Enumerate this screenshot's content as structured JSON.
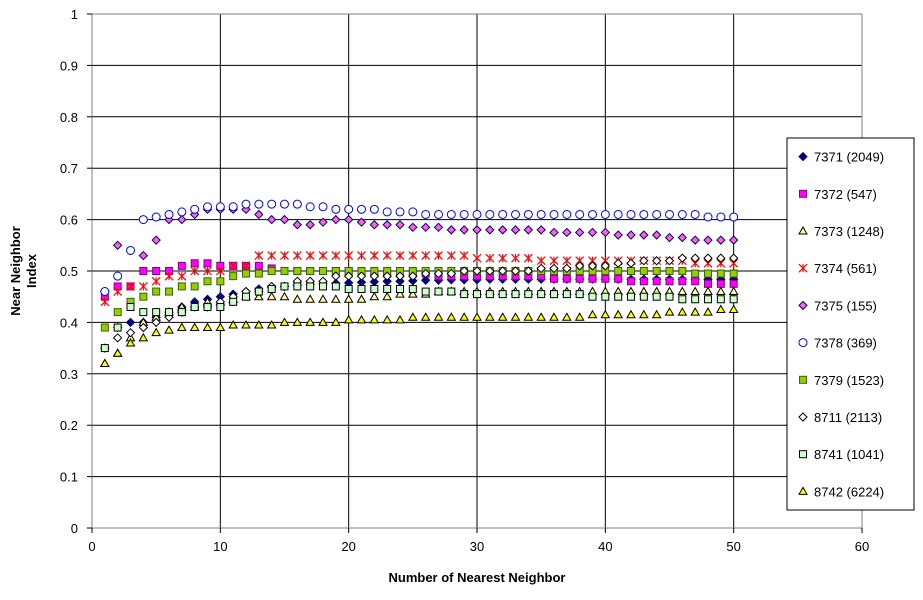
{
  "chart_data": {
    "type": "scatter",
    "title": "",
    "xlabel": "Number of Nearest Neighbor",
    "ylabel_lines": [
      "Near Neighbor",
      "Index"
    ],
    "xlim": [
      0,
      60
    ],
    "ylim": [
      0,
      1
    ],
    "x_ticks": [
      0,
      10,
      20,
      30,
      40,
      50,
      60
    ],
    "y_ticks": [
      0,
      0.1,
      0.2,
      0.3,
      0.4,
      0.5,
      0.6,
      0.7,
      0.8,
      0.9,
      1
    ],
    "x_tick_labels": [
      "0",
      "10",
      "20",
      "30",
      "40",
      "50",
      "60"
    ],
    "y_tick_labels": [
      "0",
      "0.1",
      "0.2",
      "0.3",
      "0.4",
      "0.5",
      "0.6",
      "0.7",
      "0.8",
      "0.9",
      "1"
    ],
    "grid": "major gridlines on both axes",
    "legend_position": "right",
    "x": [
      1,
      2,
      3,
      4,
      5,
      6,
      7,
      8,
      9,
      10,
      11,
      12,
      13,
      14,
      15,
      16,
      17,
      18,
      19,
      20,
      21,
      22,
      23,
      24,
      25,
      26,
      27,
      28,
      29,
      30,
      31,
      32,
      33,
      34,
      35,
      36,
      37,
      38,
      39,
      40,
      41,
      42,
      43,
      44,
      45,
      46,
      47,
      48,
      49,
      50
    ],
    "series": [
      {
        "name": "7371 (2049)",
        "marker": "diamond",
        "color": "#000080",
        "fill": "#000080",
        "values": [
          0.46,
          0.39,
          0.4,
          0.4,
          0.41,
          0.42,
          0.43,
          0.44,
          0.445,
          0.45,
          0.455,
          0.46,
          0.465,
          0.468,
          0.47,
          0.472,
          0.474,
          0.475,
          0.476,
          0.477,
          0.478,
          0.479,
          0.48,
          0.48,
          0.481,
          0.482,
          0.482,
          0.483,
          0.483,
          0.483,
          0.484,
          0.484,
          0.484,
          0.484,
          0.484,
          0.484,
          0.484,
          0.484,
          0.484,
          0.484,
          0.484,
          0.484,
          0.484,
          0.484,
          0.484,
          0.484,
          0.484,
          0.484,
          0.484,
          0.484
        ]
      },
      {
        "name": "7372 (547)",
        "marker": "square",
        "color": "#800080",
        "fill": "#ff00ff",
        "values": [
          0.45,
          0.47,
          0.47,
          0.5,
          0.5,
          0.5,
          0.51,
          0.515,
          0.515,
          0.51,
          0.51,
          0.51,
          0.51,
          0.505,
          0.5,
          0.5,
          0.5,
          0.5,
          0.5,
          0.5,
          0.5,
          0.495,
          0.495,
          0.495,
          0.495,
          0.495,
          0.49,
          0.49,
          0.49,
          0.49,
          0.49,
          0.49,
          0.49,
          0.49,
          0.49,
          0.485,
          0.485,
          0.485,
          0.485,
          0.485,
          0.485,
          0.48,
          0.48,
          0.48,
          0.48,
          0.48,
          0.48,
          0.475,
          0.475,
          0.475
        ]
      },
      {
        "name": "7373 (1248)",
        "marker": "triangle",
        "color": "#000000",
        "fill": "#ffff99",
        "values": [
          0.32,
          0.34,
          0.37,
          0.4,
          0.41,
          0.42,
          0.43,
          0.43,
          0.44,
          0.44,
          0.445,
          0.45,
          0.45,
          0.45,
          0.45,
          0.445,
          0.445,
          0.445,
          0.445,
          0.445,
          0.445,
          0.45,
          0.45,
          0.455,
          0.455,
          0.455,
          0.46,
          0.46,
          0.46,
          0.46,
          0.46,
          0.46,
          0.46,
          0.46,
          0.46,
          0.46,
          0.46,
          0.46,
          0.46,
          0.46,
          0.46,
          0.46,
          0.46,
          0.46,
          0.46,
          0.46,
          0.46,
          0.46,
          0.46,
          0.46
        ]
      },
      {
        "name": "7374 (561)",
        "marker": "star",
        "color": "#ff0000",
        "fill": "none",
        "values": [
          0.44,
          0.46,
          0.47,
          0.47,
          0.48,
          0.49,
          0.49,
          0.5,
          0.5,
          0.5,
          0.51,
          0.51,
          0.53,
          0.53,
          0.53,
          0.53,
          0.53,
          0.53,
          0.53,
          0.53,
          0.53,
          0.53,
          0.53,
          0.53,
          0.53,
          0.53,
          0.53,
          0.53,
          0.53,
          0.525,
          0.525,
          0.525,
          0.525,
          0.525,
          0.52,
          0.52,
          0.52,
          0.52,
          0.52,
          0.52,
          0.52,
          0.52,
          0.52,
          0.52,
          0.52,
          0.52,
          0.515,
          0.515,
          0.515,
          0.515
        ]
      },
      {
        "name": "7375 (155)",
        "marker": "diamond",
        "color": "#000080",
        "fill": "#ff66cc",
        "values": [
          0.46,
          0.55,
          0.54,
          0.53,
          0.56,
          0.6,
          0.6,
          0.61,
          0.62,
          0.62,
          0.62,
          0.62,
          0.61,
          0.6,
          0.6,
          0.59,
          0.59,
          0.595,
          0.6,
          0.6,
          0.595,
          0.59,
          0.59,
          0.59,
          0.585,
          0.585,
          0.585,
          0.58,
          0.58,
          0.58,
          0.58,
          0.58,
          0.58,
          0.58,
          0.58,
          0.575,
          0.575,
          0.575,
          0.575,
          0.575,
          0.57,
          0.57,
          0.57,
          0.57,
          0.565,
          0.565,
          0.56,
          0.56,
          0.56,
          0.56
        ]
      },
      {
        "name": "7378 (369)",
        "marker": "circle",
        "color": "#0000ff",
        "fill": "#ffffff",
        "values": [
          0.46,
          0.49,
          0.54,
          0.6,
          0.605,
          0.61,
          0.615,
          0.62,
          0.625,
          0.625,
          0.625,
          0.63,
          0.63,
          0.63,
          0.63,
          0.63,
          0.625,
          0.625,
          0.62,
          0.62,
          0.62,
          0.62,
          0.615,
          0.615,
          0.615,
          0.61,
          0.61,
          0.61,
          0.61,
          0.61,
          0.61,
          0.61,
          0.61,
          0.61,
          0.61,
          0.61,
          0.61,
          0.61,
          0.61,
          0.61,
          0.61,
          0.61,
          0.61,
          0.61,
          0.61,
          0.61,
          0.61,
          0.605,
          0.605,
          0.605
        ]
      },
      {
        "name": "7379 (1523)",
        "marker": "square",
        "color": "#336600",
        "fill": "#99cc00",
        "values": [
          0.39,
          0.42,
          0.44,
          0.45,
          0.46,
          0.46,
          0.47,
          0.47,
          0.48,
          0.48,
          0.49,
          0.495,
          0.495,
          0.5,
          0.5,
          0.5,
          0.5,
          0.5,
          0.5,
          0.5,
          0.5,
          0.5,
          0.5,
          0.5,
          0.5,
          0.5,
          0.5,
          0.5,
          0.5,
          0.5,
          0.5,
          0.5,
          0.5,
          0.5,
          0.5,
          0.5,
          0.5,
          0.5,
          0.5,
          0.5,
          0.5,
          0.5,
          0.5,
          0.5,
          0.5,
          0.5,
          0.495,
          0.495,
          0.495,
          0.495
        ]
      },
      {
        "name": "8711 (2113)",
        "marker": "diamond",
        "color": "#000000",
        "fill": "#ffffff",
        "values": [
          0.35,
          0.37,
          0.38,
          0.39,
          0.4,
          0.41,
          0.42,
          0.43,
          0.43,
          0.44,
          0.45,
          0.46,
          0.46,
          0.47,
          0.47,
          0.48,
          0.48,
          0.48,
          0.49,
          0.49,
          0.49,
          0.49,
          0.49,
          0.49,
          0.49,
          0.495,
          0.495,
          0.495,
          0.5,
          0.5,
          0.5,
          0.5,
          0.5,
          0.5,
          0.505,
          0.505,
          0.505,
          0.51,
          0.51,
          0.51,
          0.515,
          0.515,
          0.52,
          0.52,
          0.52,
          0.525,
          0.525,
          0.525,
          0.525,
          0.525
        ]
      },
      {
        "name": "8741 (1041)",
        "marker": "square",
        "color": "#000000",
        "fill": "#ccffcc",
        "values": [
          0.35,
          0.39,
          0.43,
          0.42,
          0.42,
          0.42,
          0.42,
          0.43,
          0.43,
          0.43,
          0.44,
          0.45,
          0.46,
          0.465,
          0.47,
          0.47,
          0.47,
          0.47,
          0.47,
          0.465,
          0.465,
          0.465,
          0.465,
          0.465,
          0.465,
          0.46,
          0.46,
          0.46,
          0.455,
          0.455,
          0.455,
          0.455,
          0.455,
          0.455,
          0.455,
          0.455,
          0.455,
          0.455,
          0.45,
          0.45,
          0.45,
          0.45,
          0.45,
          0.45,
          0.45,
          0.445,
          0.445,
          0.445,
          0.445,
          0.445
        ]
      },
      {
        "name": "8742 (6224)",
        "marker": "triangle",
        "color": "#000000",
        "fill": "#ffff00",
        "values": [
          0.32,
          0.34,
          0.36,
          0.37,
          0.38,
          0.385,
          0.39,
          0.39,
          0.39,
          0.39,
          0.395,
          0.395,
          0.395,
          0.395,
          0.4,
          0.4,
          0.4,
          0.4,
          0.4,
          0.405,
          0.405,
          0.405,
          0.405,
          0.405,
          0.41,
          0.41,
          0.41,
          0.41,
          0.41,
          0.41,
          0.41,
          0.41,
          0.41,
          0.41,
          0.41,
          0.41,
          0.41,
          0.41,
          0.415,
          0.415,
          0.415,
          0.415,
          0.415,
          0.415,
          0.42,
          0.42,
          0.42,
          0.42,
          0.425,
          0.425
        ]
      }
    ]
  },
  "plot_style": {
    "plot_background": "#ffffff",
    "grid_color": "#000000",
    "frame_color": "#808080"
  }
}
